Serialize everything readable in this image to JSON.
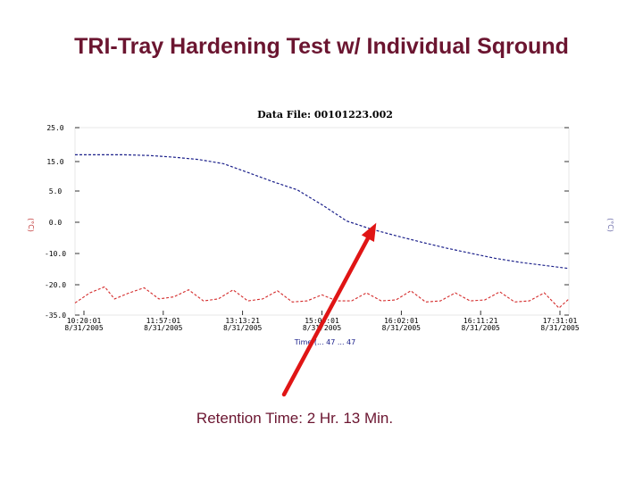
{
  "slide": {
    "title": "TRI-Tray Hardening Test w/ Individual Sqround",
    "caption": "Retention Time:  2 Hr. 13 Min."
  },
  "colors": {
    "title": "#6b1530",
    "caption": "#6b1530",
    "series_upper": "#1a1f8a",
    "series_lower": "#d42a2a",
    "arrow": "#e01515"
  },
  "chart_data": {
    "type": "line",
    "title": "Data File: 00101223.002",
    "xlabel": "Time (... 47 ... 47",
    "ylabel_left": "(°C)",
    "ylabel_right": "(°C)",
    "y_ticks": [
      "25.0",
      "15.0",
      "5.0",
      "0.0",
      "-10.0",
      "-20.0",
      "-35.0"
    ],
    "x_ticks": [
      {
        "time": "10:20:01",
        "date": "8/31/2005"
      },
      {
        "time": "11:57:01",
        "date": "8/31/2005"
      },
      {
        "time": "13:13:21",
        "date": "8/31/2005"
      },
      {
        "time": "15:09:01",
        "date": "8/31/2005"
      },
      {
        "time": "16:02:01",
        "date": "8/31/2005"
      },
      {
        "time": "16:11:21",
        "date": "8/31/2005"
      },
      {
        "time": "17:31:01",
        "date": "8/31/2005"
      }
    ],
    "series": [
      {
        "x": [
          0,
          5,
          10,
          15,
          20,
          25,
          30,
          35,
          40,
          45,
          50,
          55,
          60,
          65,
          70,
          75,
          80,
          85,
          90,
          95,
          100
        ],
        "y": [
          17.0,
          17.0,
          17.0,
          16.8,
          16.3,
          15.6,
          14.3,
          11.3,
          8.2,
          5.4,
          2.8,
          0.2,
          -2.2,
          -4.3,
          -6.3,
          -8.2,
          -9.9,
          -11.5,
          -12.8,
          -13.8,
          -14.8
        ]
      },
      {
        "x": [
          0,
          3,
          6,
          8,
          11,
          14,
          17,
          20,
          23,
          26,
          29,
          32,
          35,
          38,
          41,
          44,
          47,
          50,
          53,
          56,
          59,
          62,
          65,
          68,
          71,
          74,
          77,
          80,
          83,
          86,
          89,
          92,
          95,
          98,
          100
        ],
        "y": [
          -29.0,
          -24.0,
          -21.0,
          -27.0,
          -24.0,
          -21.5,
          -27.0,
          -26.0,
          -22.5,
          -28.0,
          -27.0,
          -22.5,
          -28.0,
          -27.0,
          -23.0,
          -28.5,
          -28.0,
          -25.0,
          -28.0,
          -28.0,
          -24.0,
          -28.0,
          -27.5,
          -23.0,
          -28.5,
          -28.0,
          -24.0,
          -28.0,
          -27.5,
          -23.5,
          -28.5,
          -28.0,
          -24.0,
          -31.5,
          -27.0
        ]
      }
    ],
    "annotation": {
      "x": 61,
      "y": 0.2,
      "text": "Retention Time:  2 Hr. 13 Min."
    }
  }
}
